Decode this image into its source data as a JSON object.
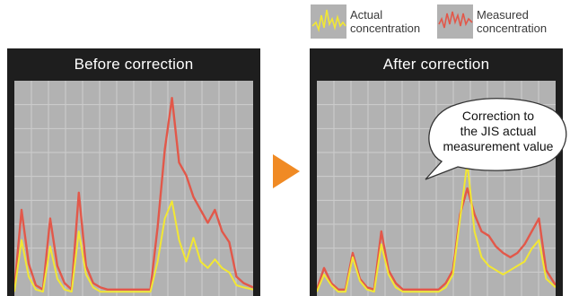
{
  "legend": {
    "actual": {
      "line1": "Actual",
      "line2": "concentration",
      "color": "#f2e733"
    },
    "measured": {
      "line1": "Measured",
      "line2": "concentration",
      "color": "#e2584a"
    }
  },
  "callout": {
    "line1": "Correction to",
    "line2": "the JIS actual",
    "line3": "measurement value"
  },
  "colors": {
    "panel_frame": "#1e1e1e",
    "plot_background": "#b2b2b2",
    "grid": "#cdcdcd",
    "arrow": "#f08a24"
  },
  "chart_data": [
    {
      "type": "line",
      "title": "Before correction",
      "grid": true,
      "xlim": [
        0,
        100
      ],
      "ylim": [
        0,
        100
      ],
      "x": [
        0,
        3,
        6,
        9,
        12,
        15,
        18,
        21,
        24,
        27,
        30,
        33,
        36,
        39,
        42,
        45,
        48,
        51,
        54,
        57,
        60,
        63,
        66,
        69,
        72,
        75,
        78,
        81,
        84,
        87,
        90,
        93,
        96,
        100
      ],
      "series": [
        {
          "name": "Measured concentration",
          "color": "#e2584a",
          "values": [
            3,
            40,
            15,
            5,
            3,
            36,
            14,
            6,
            3,
            48,
            14,
            6,
            4,
            3,
            3,
            3,
            3,
            3,
            3,
            3,
            32,
            68,
            92,
            62,
            56,
            46,
            40,
            34,
            40,
            30,
            25,
            9,
            6,
            4
          ]
        },
        {
          "name": "Actual concentration",
          "color": "#f2e733",
          "values": [
            2,
            26,
            9,
            3,
            2,
            23,
            8,
            3,
            2,
            30,
            10,
            4,
            2,
            2,
            2,
            2,
            2,
            2,
            2,
            2,
            16,
            36,
            44,
            26,
            16,
            27,
            16,
            13,
            17,
            13,
            11,
            5,
            4,
            3
          ]
        }
      ]
    },
    {
      "type": "line",
      "title": "After correction",
      "grid": true,
      "xlim": [
        0,
        100
      ],
      "ylim": [
        0,
        100
      ],
      "x": [
        0,
        3,
        6,
        9,
        12,
        15,
        18,
        21,
        24,
        27,
        30,
        33,
        36,
        39,
        42,
        45,
        48,
        51,
        54,
        57,
        60,
        63,
        66,
        69,
        72,
        75,
        78,
        81,
        84,
        87,
        90,
        93,
        96,
        100
      ],
      "series": [
        {
          "name": "Measured concentration",
          "color": "#e2584a",
          "values": [
            3,
            13,
            6,
            3,
            3,
            20,
            8,
            4,
            3,
            30,
            12,
            6,
            3,
            3,
            3,
            3,
            3,
            3,
            6,
            12,
            38,
            50,
            38,
            30,
            28,
            23,
            20,
            18,
            20,
            24,
            30,
            36,
            12,
            5
          ]
        },
        {
          "name": "Actual concentration",
          "color": "#f2e733",
          "values": [
            2,
            10,
            5,
            2,
            2,
            18,
            7,
            3,
            2,
            24,
            10,
            4,
            2,
            2,
            2,
            2,
            2,
            2,
            4,
            10,
            36,
            62,
            30,
            18,
            14,
            12,
            10,
            12,
            14,
            16,
            22,
            26,
            8,
            4
          ]
        }
      ]
    }
  ]
}
